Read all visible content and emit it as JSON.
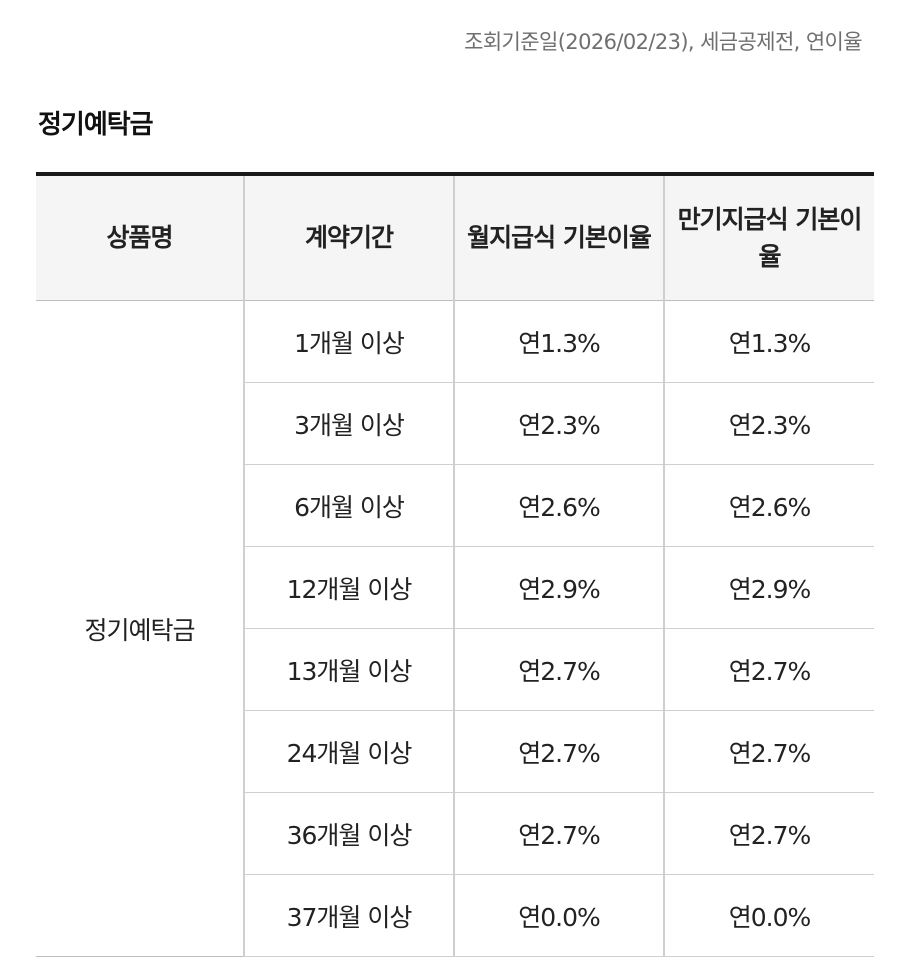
{
  "meta_note": "조회기준일(2026/02/23), 세금공제전, 연이율",
  "section_title": "정기예탁금",
  "table": {
    "headers": {
      "product": "상품명",
      "period": "계약기간",
      "monthly_rate": "월지급식 기본이율",
      "maturity_rate": "만기지급식 기본이율"
    },
    "product_name": "정기예탁금",
    "rows": [
      {
        "period": "1개월 이상",
        "monthly": "연1.3%",
        "maturity": "연1.3%"
      },
      {
        "period": "3개월 이상",
        "monthly": "연2.3%",
        "maturity": "연2.3%"
      },
      {
        "period": "6개월 이상",
        "monthly": "연2.6%",
        "maturity": "연2.6%"
      },
      {
        "period": "12개월 이상",
        "monthly": "연2.9%",
        "maturity": "연2.9%"
      },
      {
        "period": "13개월 이상",
        "monthly": "연2.7%",
        "maturity": "연2.7%"
      },
      {
        "period": "24개월 이상",
        "monthly": "연2.7%",
        "maturity": "연2.7%"
      },
      {
        "period": "36개월 이상",
        "monthly": "연2.7%",
        "maturity": "연2.7%"
      },
      {
        "period": "37개월 이상",
        "monthly": "연0.0%",
        "maturity": "연0.0%"
      }
    ]
  }
}
